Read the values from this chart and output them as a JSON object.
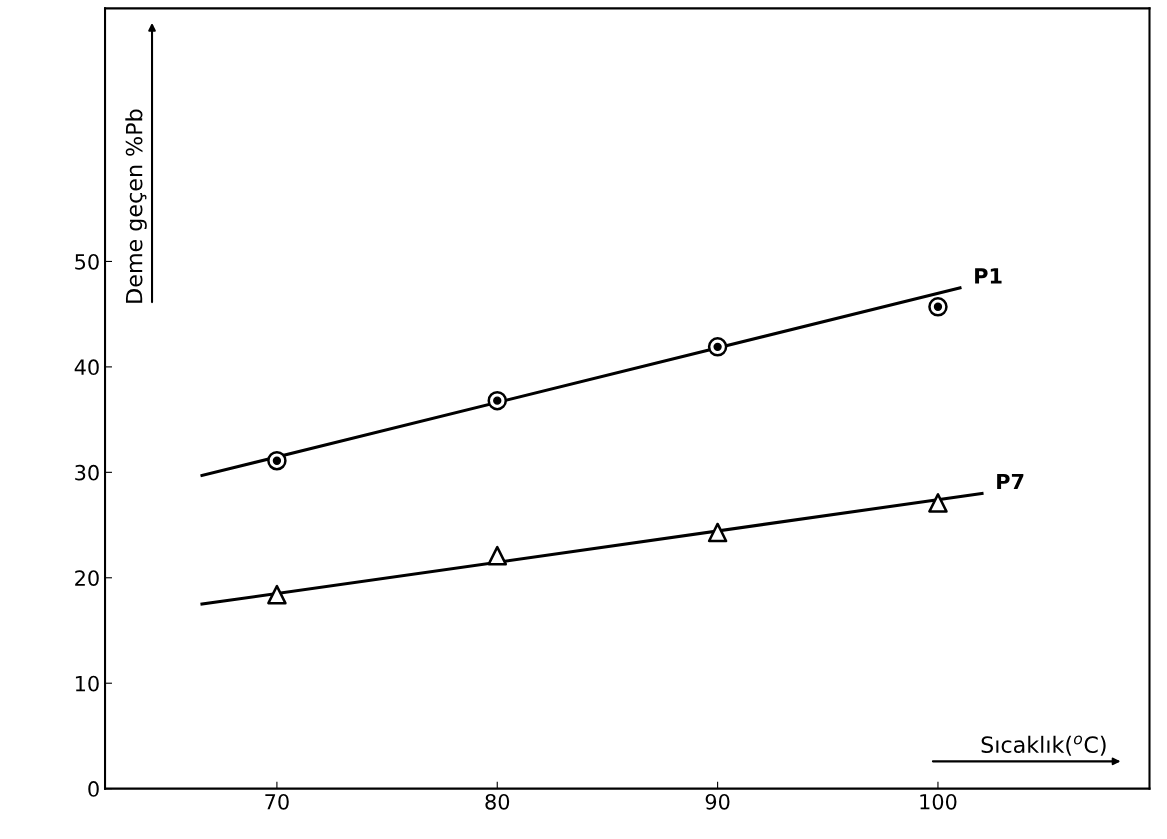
{
  "chart_data": {
    "type": "scatter",
    "xlabel": "Sıcaklık($^{o}$C)",
    "ylabel": "Deme geçen %Pb",
    "xlim": [
      62.2,
      109.6
    ],
    "ylim": [
      0,
      74
    ],
    "xticks": [
      70,
      80,
      90,
      100
    ],
    "yticks": [
      0,
      10,
      20,
      30,
      40,
      50
    ],
    "grid": false,
    "legend": false,
    "series": [
      {
        "marker": "circle",
        "color": "#000000",
        "x": [
          70,
          80,
          90,
          100
        ],
        "values": [
          31.1,
          36.8,
          41.9,
          45.7
        ]
      },
      {
        "type": "line",
        "name": "P1",
        "color": "#000000",
        "marker": "none",
        "line_style": "solid",
        "x": [
          66.6,
          101
        ],
        "values": [
          29.7,
          47.5
        ]
      },
      {
        "marker": "triangle",
        "color": "#000000",
        "x": [
          70,
          80,
          90,
          100
        ],
        "values": [
          18.4,
          22.1,
          24.3,
          27.1
        ]
      },
      {
        "type": "line",
        "name": "P7",
        "color": "#000000",
        "marker": "none",
        "line_style": "solid",
        "x": [
          66.6,
          102
        ],
        "values": [
          17.5,
          28.0
        ]
      }
    ]
  }
}
